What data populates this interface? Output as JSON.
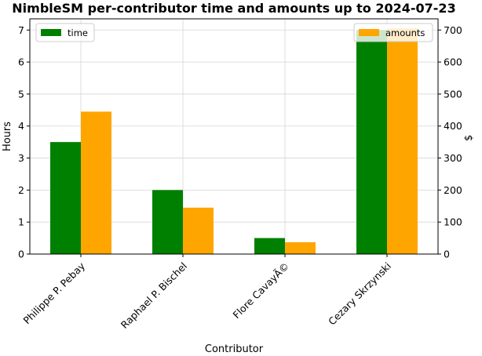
{
  "chart_data": {
    "type": "bar",
    "title": "NimbleSM per-contributor time and amounts up to 2024-07-23",
    "xlabel": "Contributor",
    "ylabel_left": "Hours",
    "ylabel_right": "$",
    "categories": [
      "Philippe P. Pebay",
      "Raphael P. Bischel",
      "Flore CavayÃ©",
      "Cezary Skrzynski"
    ],
    "series": [
      {
        "name": "time",
        "axis": "left",
        "color": "#008000",
        "values": [
          3.5,
          2.0,
          0.5,
          7.0
        ]
      },
      {
        "name": "amounts",
        "axis": "right",
        "color": "#ffa500",
        "values": [
          445,
          145,
          37,
          705
        ]
      }
    ],
    "ylim_left": [
      0,
      7.35
    ],
    "ylim_right": [
      0,
      735
    ],
    "yticks_left": [
      "0",
      "1",
      "2",
      "3",
      "4",
      "5",
      "6",
      "7"
    ],
    "yticks_right": [
      "0",
      "100",
      "200",
      "300",
      "400",
      "500",
      "600",
      "700"
    ],
    "grid": true,
    "legend_left_position": "upper-left",
    "legend_right_position": "upper-right"
  }
}
